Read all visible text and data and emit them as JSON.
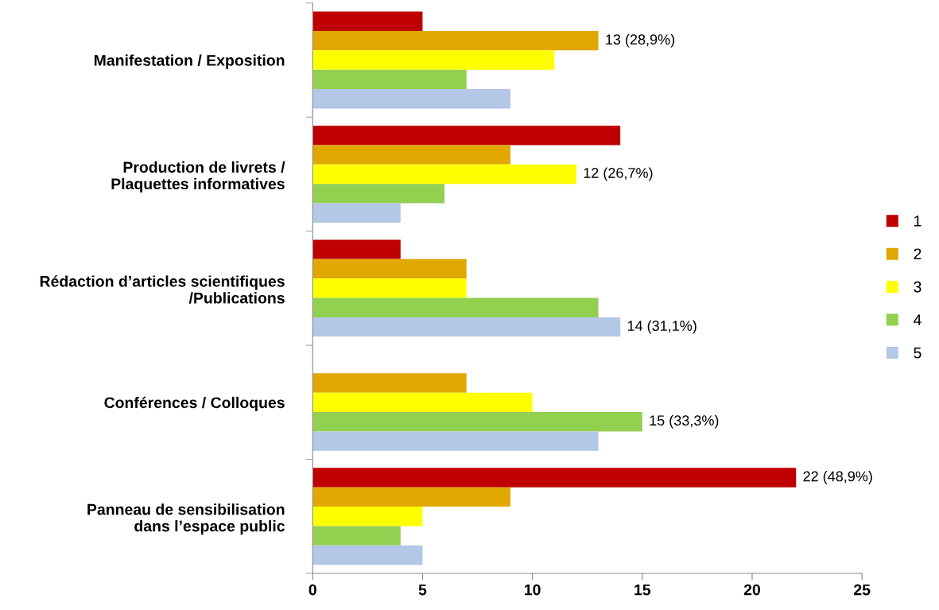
{
  "chart_data": {
    "type": "bar",
    "orientation": "horizontal",
    "categories": [
      "Manifestation / Exposition",
      "Production de livrets /\nPlaquettes informatives",
      "Rédaction d’articles scientifiques\n/Publications",
      "Conférences / Colloques",
      "Panneau de sensibilisation\ndans l’espace public"
    ],
    "series": [
      {
        "name": "1",
        "color": "#c00000",
        "values": [
          5,
          14,
          4,
          0,
          22
        ],
        "value_labels": [
          null,
          null,
          null,
          null,
          "22 (48,9%)"
        ]
      },
      {
        "name": "2",
        "color": "#e0a800",
        "values": [
          13,
          9,
          7,
          7,
          9
        ],
        "value_labels": [
          "13 (28,9%)",
          null,
          null,
          null,
          null
        ]
      },
      {
        "name": "3",
        "color": "#ffff00",
        "values": [
          11,
          12,
          7,
          10,
          5
        ],
        "value_labels": [
          null,
          "12 (26,7%)",
          null,
          null,
          null
        ]
      },
      {
        "name": "4",
        "color": "#92d050",
        "values": [
          7,
          6,
          13,
          15,
          4
        ],
        "value_labels": [
          null,
          null,
          null,
          "15 (33,3%)",
          null
        ]
      },
      {
        "name": "5",
        "color": "#b4c7e7",
        "values": [
          9,
          4,
          14,
          13,
          5
        ],
        "value_labels": [
          null,
          null,
          "14 (31,1%)",
          null,
          null
        ]
      }
    ],
    "xlim": [
      0,
      25
    ],
    "xticks": [
      0,
      5,
      10,
      15,
      20,
      25
    ],
    "grid": false,
    "legend": "right"
  }
}
